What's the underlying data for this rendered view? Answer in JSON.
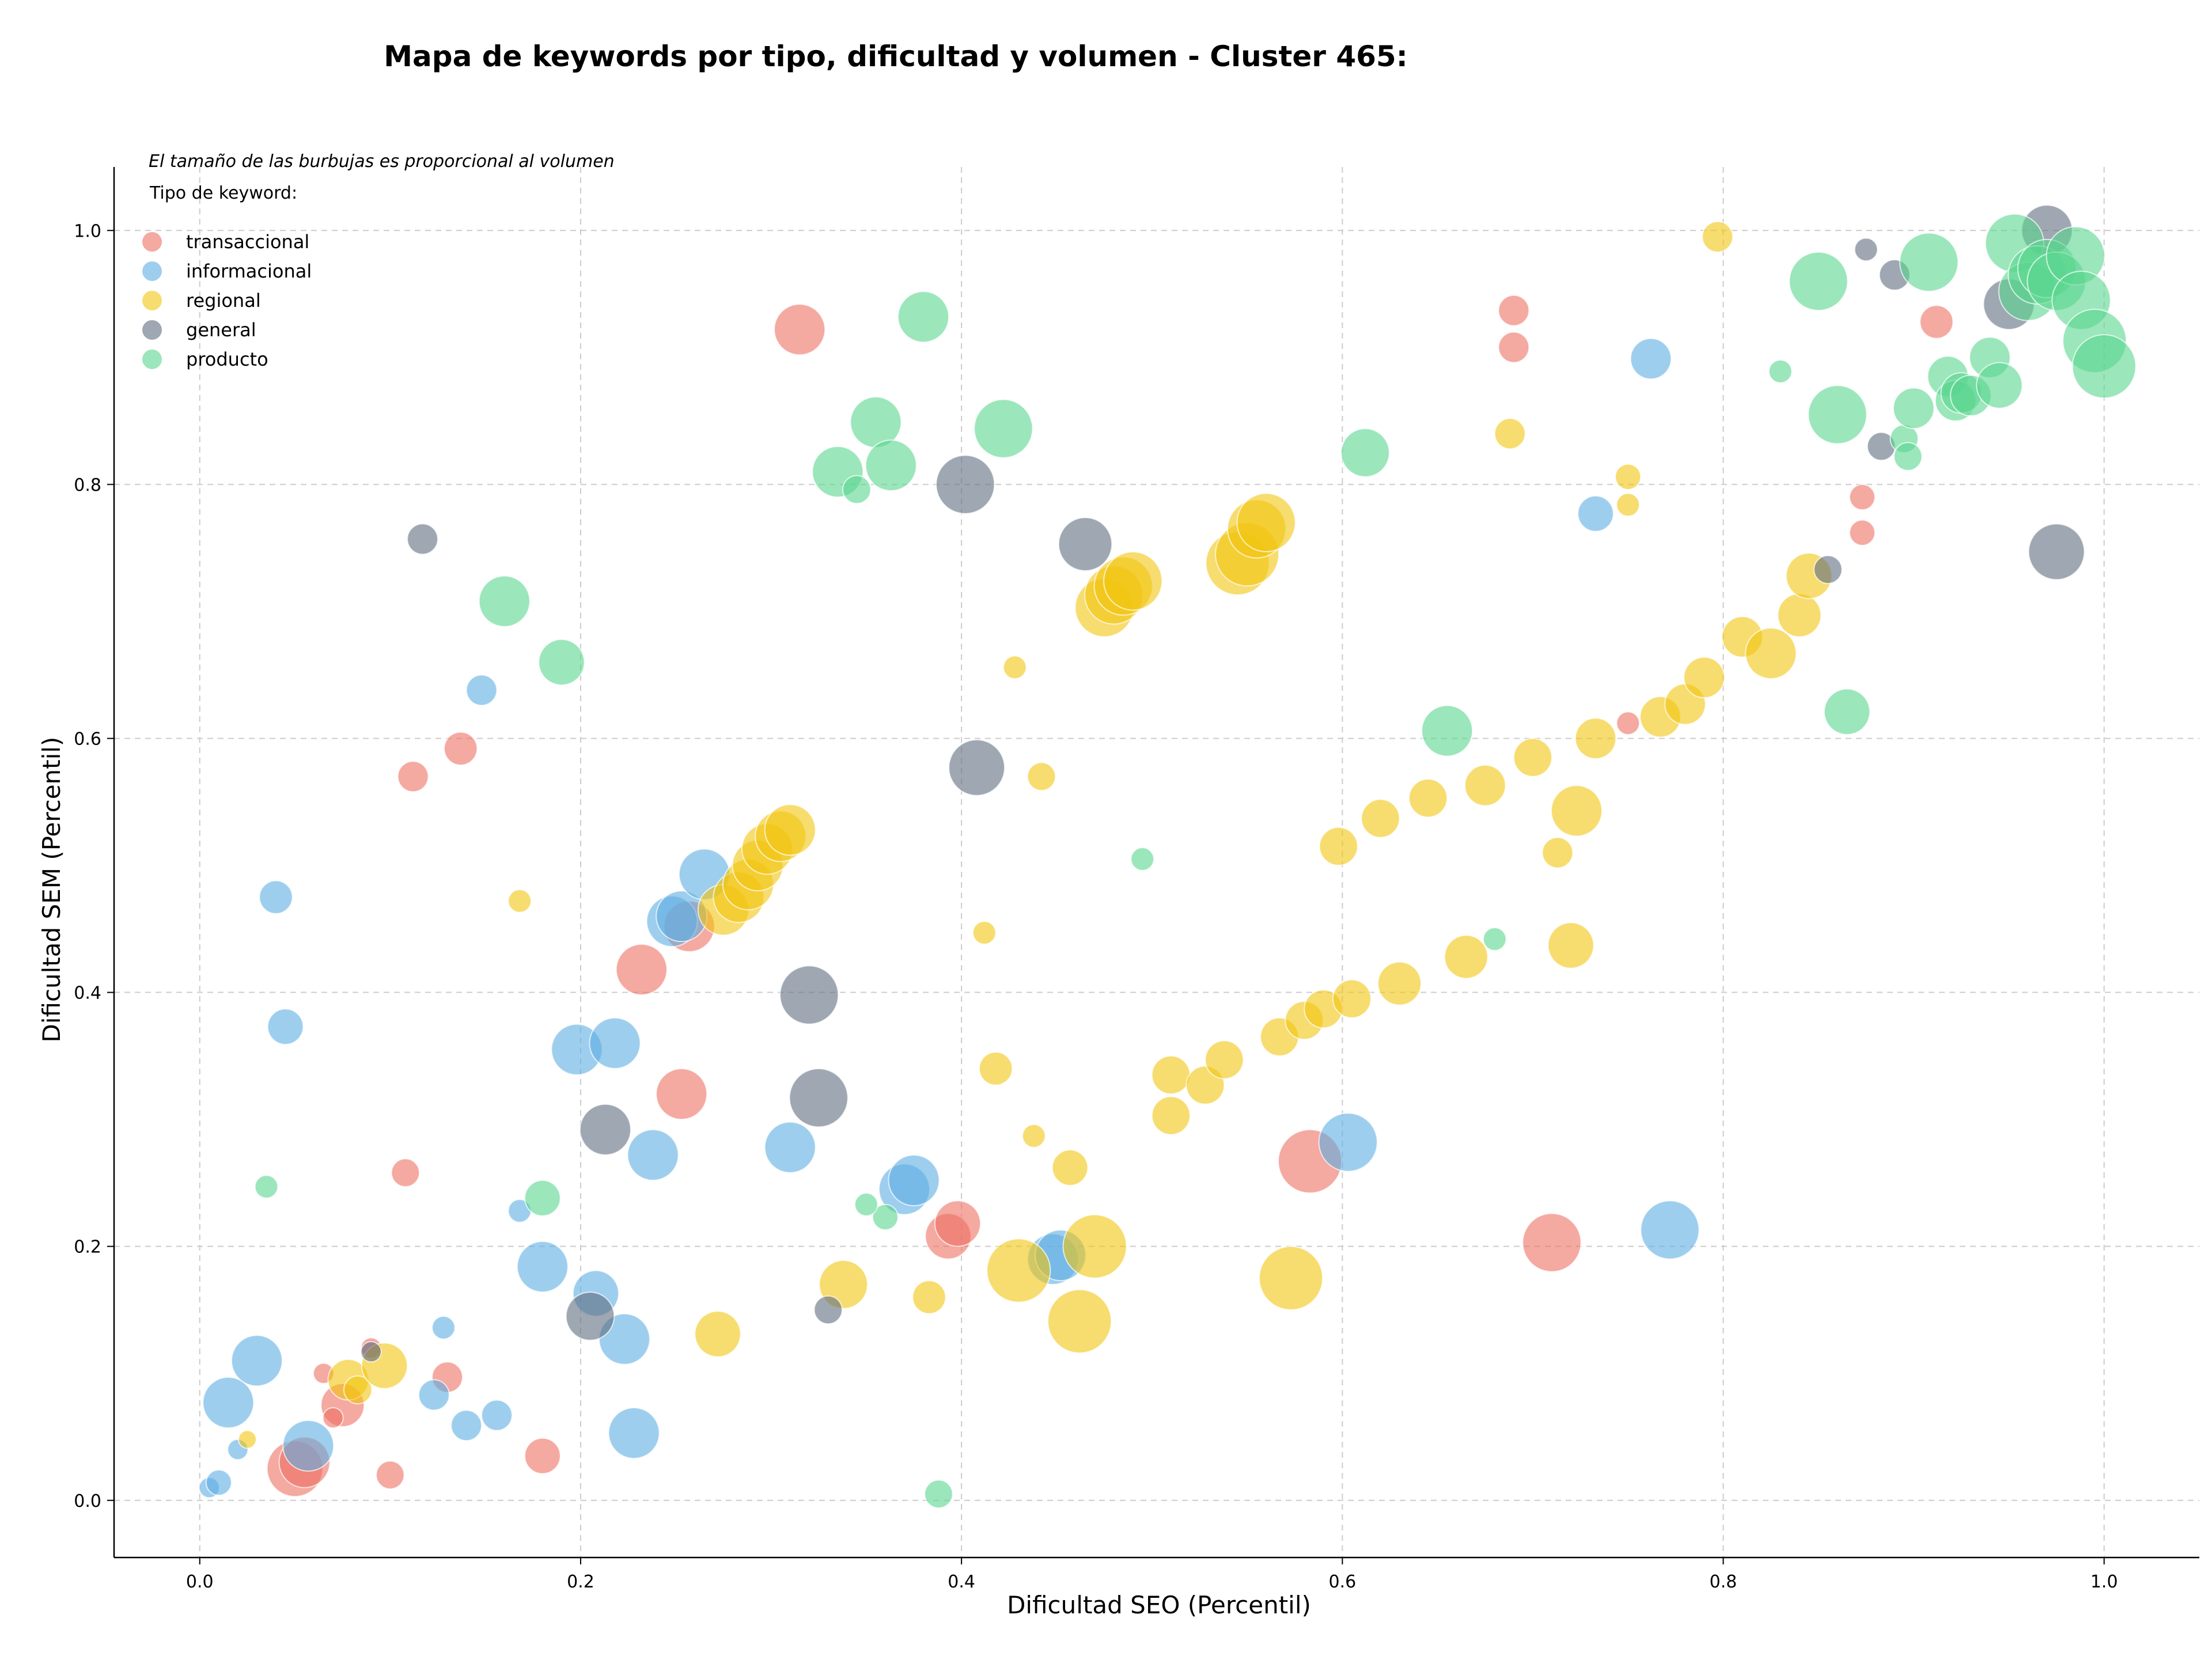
{
  "chart_data": {
    "type": "scatter",
    "title": "Mapa de keywords por tipo, dificultad y volumen - Cluster 465:",
    "xlabel": "Dificultad SEO (Percentil)",
    "ylabel": "Dificultad SEM (Percentil)",
    "xlim": [
      -0.045,
      1.05
    ],
    "ylim": [
      -0.045,
      1.05
    ],
    "xticks": [
      "0.0",
      "0.2",
      "0.4",
      "0.6",
      "0.8",
      "1.0"
    ],
    "yticks": [
      "0.0",
      "0.2",
      "0.4",
      "0.6",
      "0.8",
      "1.0"
    ],
    "grid": true,
    "legend_placement": "top-left",
    "annotation": "El tamaño de las burbujas es proporcional al volumen",
    "legend_title": "Tipo de keyword:",
    "series": [
      {
        "name": "transaccional",
        "color": "#ec7063",
        "points": [
          [
            0.05,
            0.025,
            2.2
          ],
          [
            0.055,
            0.03,
            2
          ],
          [
            0.075,
            0.075,
            1.7
          ],
          [
            0.065,
            0.1,
            0.8
          ],
          [
            0.07,
            0.065,
            0.8
          ],
          [
            0.09,
            0.12,
            0.8
          ],
          [
            0.1,
            0.02,
            1.1
          ],
          [
            0.13,
            0.097,
            1.2
          ],
          [
            0.18,
            0.035,
            1.4
          ],
          [
            0.108,
            0.258,
            1.1
          ],
          [
            0.112,
            0.57,
            1.2
          ],
          [
            0.137,
            0.592,
            1.3
          ],
          [
            0.232,
            0.418,
            2
          ],
          [
            0.257,
            0.452,
            2
          ],
          [
            0.253,
            0.32,
            2
          ],
          [
            0.315,
            0.922,
            2
          ],
          [
            0.393,
            0.208,
            1.8
          ],
          [
            0.398,
            0.218,
            1.8
          ],
          [
            0.583,
            0.267,
            2.5
          ],
          [
            0.71,
            0.203,
            2.3
          ],
          [
            0.69,
            0.937,
            1.2
          ],
          [
            0.69,
            0.908,
            1.2
          ],
          [
            0.75,
            0.612,
            0.9
          ],
          [
            0.873,
            0.79,
            1
          ],
          [
            0.873,
            0.762,
            1
          ],
          [
            0.912,
            0.928,
            1.3
          ]
        ]
      },
      {
        "name": "informacional",
        "color": "#5dade2",
        "points": [
          [
            0.005,
            0.01,
            0.8
          ],
          [
            0.01,
            0.014,
            1
          ],
          [
            0.015,
            0.077,
            2
          ],
          [
            0.02,
            0.04,
            0.8
          ],
          [
            0.03,
            0.11,
            2
          ],
          [
            0.04,
            0.475,
            1.3
          ],
          [
            0.045,
            0.373,
            1.4
          ],
          [
            0.057,
            0.043,
            2
          ],
          [
            0.123,
            0.083,
            1.2
          ],
          [
            0.128,
            0.136,
            0.9
          ],
          [
            0.14,
            0.059,
            1.2
          ],
          [
            0.156,
            0.067,
            1.2
          ],
          [
            0.148,
            0.638,
            1.2
          ],
          [
            0.168,
            0.228,
            0.9
          ],
          [
            0.18,
            0.184,
            2
          ],
          [
            0.198,
            0.355,
            2
          ],
          [
            0.208,
            0.163,
            1.8
          ],
          [
            0.218,
            0.36,
            2
          ],
          [
            0.223,
            0.127,
            2
          ],
          [
            0.228,
            0.053,
            2
          ],
          [
            0.238,
            0.272,
            2
          ],
          [
            0.248,
            0.456,
            2
          ],
          [
            0.253,
            0.46,
            2
          ],
          [
            0.265,
            0.493,
            2
          ],
          [
            0.31,
            0.278,
            2
          ],
          [
            0.37,
            0.245,
            2
          ],
          [
            0.375,
            0.252,
            2
          ],
          [
            0.448,
            0.19,
            2
          ],
          [
            0.452,
            0.193,
            2
          ],
          [
            0.603,
            0.282,
            2.3
          ],
          [
            0.733,
            0.777,
            1.4
          ],
          [
            0.762,
            0.899,
            1.6
          ],
          [
            0.772,
            0.213,
            2.3
          ]
        ]
      },
      {
        "name": "regional",
        "color": "#f1c40f",
        "points": [
          [
            0.025,
            0.048,
            0.7
          ],
          [
            0.078,
            0.095,
            1.6
          ],
          [
            0.083,
            0.087,
            1.1
          ],
          [
            0.097,
            0.106,
            1.8
          ],
          [
            0.168,
            0.472,
            0.9
          ],
          [
            0.272,
            0.131,
            1.8
          ],
          [
            0.275,
            0.465,
            2
          ],
          [
            0.283,
            0.475,
            2
          ],
          [
            0.288,
            0.485,
            2
          ],
          [
            0.293,
            0.5,
            2
          ],
          [
            0.298,
            0.513,
            2
          ],
          [
            0.305,
            0.523,
            2
          ],
          [
            0.31,
            0.528,
            2
          ],
          [
            0.338,
            0.17,
            1.9
          ],
          [
            0.383,
            0.16,
            1.3
          ],
          [
            0.412,
            0.447,
            0.9
          ],
          [
            0.418,
            0.34,
            1.3
          ],
          [
            0.428,
            0.656,
            0.9
          ],
          [
            0.43,
            0.181,
            2.5
          ],
          [
            0.438,
            0.287,
            0.9
          ],
          [
            0.442,
            0.57,
            1.1
          ],
          [
            0.457,
            0.262,
            1.4
          ],
          [
            0.462,
            0.141,
            2.5
          ],
          [
            0.47,
            0.2,
            2.5
          ],
          [
            0.475,
            0.703,
            2.3
          ],
          [
            0.48,
            0.713,
            2.3
          ],
          [
            0.485,
            0.72,
            2.3
          ],
          [
            0.49,
            0.724,
            2.3
          ],
          [
            0.51,
            0.335,
            1.5
          ],
          [
            0.51,
            0.303,
            1.5
          ],
          [
            0.528,
            0.327,
            1.5
          ],
          [
            0.538,
            0.347,
            1.5
          ],
          [
            0.545,
            0.738,
            2.5
          ],
          [
            0.55,
            0.745,
            2.5
          ],
          [
            0.555,
            0.765,
            2.3
          ],
          [
            0.56,
            0.77,
            2.3
          ],
          [
            0.567,
            0.365,
            1.5
          ],
          [
            0.573,
            0.175,
            2.5
          ],
          [
            0.58,
            0.378,
            1.5
          ],
          [
            0.59,
            0.387,
            1.5
          ],
          [
            0.598,
            0.515,
            1.5
          ],
          [
            0.605,
            0.395,
            1.5
          ],
          [
            0.62,
            0.537,
            1.5
          ],
          [
            0.63,
            0.407,
            1.7
          ],
          [
            0.645,
            0.553,
            1.5
          ],
          [
            0.665,
            0.428,
            1.7
          ],
          [
            0.675,
            0.563,
            1.6
          ],
          [
            0.688,
            0.84,
            1.2
          ],
          [
            0.7,
            0.585,
            1.5
          ],
          [
            0.713,
            0.51,
            1.2
          ],
          [
            0.72,
            0.437,
            1.8
          ],
          [
            0.723,
            0.543,
            2
          ],
          [
            0.733,
            0.6,
            1.6
          ],
          [
            0.75,
            0.806,
            1
          ],
          [
            0.75,
            0.784,
            0.9
          ],
          [
            0.767,
            0.617,
            1.6
          ],
          [
            0.78,
            0.627,
            1.6
          ],
          [
            0.79,
            0.648,
            1.6
          ],
          [
            0.797,
            0.995,
            1.2
          ],
          [
            0.81,
            0.68,
            1.6
          ],
          [
            0.825,
            0.667,
            2
          ],
          [
            0.84,
            0.697,
            1.7
          ],
          [
            0.845,
            0.728,
            1.8
          ]
        ]
      },
      {
        "name": "general",
        "color": "#5d6d7e",
        "points": [
          [
            0.09,
            0.117,
            0.8
          ],
          [
            0.117,
            0.757,
            1.2
          ],
          [
            0.205,
            0.145,
            1.9
          ],
          [
            0.213,
            0.292,
            2
          ],
          [
            0.32,
            0.398,
            2.3
          ],
          [
            0.325,
            0.317,
            2.3
          ],
          [
            0.33,
            0.15,
            1.1
          ],
          [
            0.402,
            0.8,
            2.3
          ],
          [
            0.408,
            0.577,
            2.2
          ],
          [
            0.465,
            0.753,
            2.1
          ],
          [
            0.855,
            0.733,
            1.1
          ],
          [
            0.875,
            0.985,
            0.9
          ],
          [
            0.883,
            0.83,
            1.1
          ],
          [
            0.89,
            0.965,
            1.2
          ],
          [
            0.95,
            0.942,
            2
          ],
          [
            0.97,
            1.0,
            2
          ],
          [
            0.975,
            0.747,
            2.2
          ]
        ]
      },
      {
        "name": "producto",
        "color": "#58d68d",
        "points": [
          [
            0.035,
            0.247,
            0.9
          ],
          [
            0.16,
            0.708,
            2
          ],
          [
            0.18,
            0.238,
            1.4
          ],
          [
            0.19,
            0.66,
            1.8
          ],
          [
            0.335,
            0.81,
            2
          ],
          [
            0.345,
            0.796,
            1.1
          ],
          [
            0.355,
            0.849,
            2
          ],
          [
            0.36,
            0.223,
            1
          ],
          [
            0.363,
            0.815,
            2
          ],
          [
            0.35,
            0.233,
            0.9
          ],
          [
            0.38,
            0.932,
            2
          ],
          [
            0.388,
            0.005,
            1.1
          ],
          [
            0.422,
            0.844,
            2.3
          ],
          [
            0.495,
            0.505,
            0.9
          ],
          [
            0.612,
            0.825,
            1.9
          ],
          [
            0.655,
            0.606,
            2
          ],
          [
            0.68,
            0.442,
            0.9
          ],
          [
            0.83,
            0.889,
            0.9
          ],
          [
            0.85,
            0.96,
            2.3
          ],
          [
            0.86,
            0.855,
            2.3
          ],
          [
            0.865,
            0.621,
            1.8
          ],
          [
            0.895,
            0.836,
            1.1
          ],
          [
            0.897,
            0.822,
            1.1
          ],
          [
            0.9,
            0.86,
            1.6
          ],
          [
            0.908,
            0.975,
            2.3
          ],
          [
            0.918,
            0.885,
            1.6
          ],
          [
            0.922,
            0.866,
            1.6
          ],
          [
            0.925,
            0.872,
            1.6
          ],
          [
            0.93,
            0.87,
            1.6
          ],
          [
            0.94,
            0.9,
            1.6
          ],
          [
            0.945,
            0.878,
            1.8
          ],
          [
            0.953,
            0.99,
            2.3
          ],
          [
            0.96,
            0.952,
            2.3
          ],
          [
            0.965,
            0.965,
            2.3
          ],
          [
            0.97,
            0.97,
            2.3
          ],
          [
            0.975,
            0.96,
            2.3
          ],
          [
            0.985,
            0.98,
            2.3
          ],
          [
            0.988,
            0.945,
            2.3
          ],
          [
            0.995,
            0.913,
            2.5
          ],
          [
            1.0,
            0.893,
            2.5
          ]
        ]
      }
    ]
  }
}
